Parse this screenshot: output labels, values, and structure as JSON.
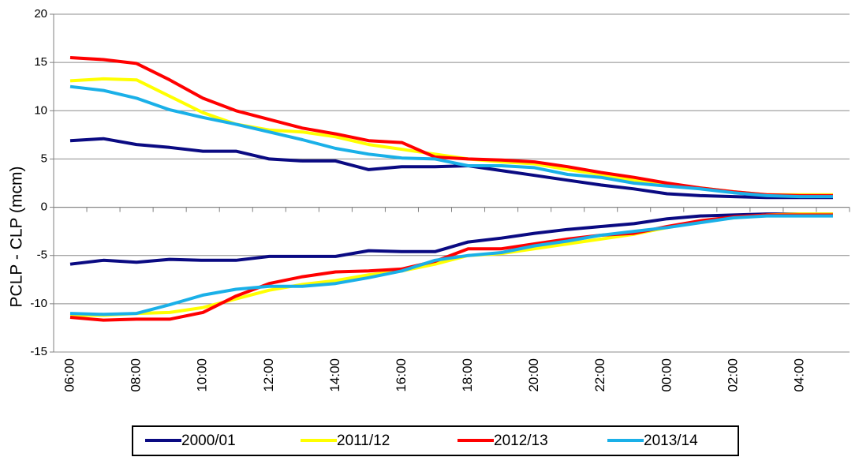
{
  "chart_data": {
    "type": "line",
    "y_label": "PCLP - CLP (mcm)",
    "categories": [
      "06:00",
      null,
      "08:00",
      null,
      "10:00",
      null,
      "12:00",
      null,
      "14:00",
      null,
      "16:00",
      null,
      "18:00",
      null,
      "20:00",
      null,
      "22:00",
      null,
      "00:00",
      null,
      "02:00",
      null,
      "04:00",
      null
    ],
    "ylim": [
      -15,
      20
    ],
    "yticks": [
      -15,
      -10,
      -5,
      0,
      5,
      10,
      15,
      20
    ],
    "grid": true,
    "series": [
      {
        "name": "2000/01",
        "color": "#0a0a82",
        "values": [
          6.9,
          7.1,
          6.5,
          6.2,
          5.8,
          5.8,
          5.0,
          4.8,
          4.8,
          3.9,
          4.2,
          4.2,
          4.3,
          3.8,
          3.3,
          2.8,
          2.3,
          1.9,
          1.4,
          1.2,
          1.1,
          1.0,
          1.0,
          1.0
        ],
        "values_lower": [
          -5.9,
          -5.5,
          -5.7,
          -5.4,
          -5.5,
          -5.5,
          -5.1,
          -5.1,
          -5.1,
          -4.5,
          -4.6,
          -4.6,
          -3.6,
          -3.2,
          -2.7,
          -2.3,
          -2.0,
          -1.7,
          -1.2,
          -0.9,
          -0.8,
          -0.7,
          -0.7,
          -0.7
        ]
      },
      {
        "name": "2011/12",
        "color": "#ffff00",
        "values": [
          13.1,
          13.3,
          13.2,
          11.5,
          9.8,
          8.6,
          8.0,
          7.8,
          7.3,
          6.5,
          6.0,
          5.5,
          5.0,
          4.7,
          4.5,
          3.9,
          3.4,
          2.8,
          2.4,
          2.0,
          1.6,
          1.3,
          1.3,
          1.3
        ],
        "values_lower": [
          -11.2,
          -11.2,
          -11.0,
          -10.9,
          -10.4,
          -9.5,
          -8.6,
          -8.0,
          -7.6,
          -7.0,
          -6.6,
          -5.9,
          -5.0,
          -4.8,
          -4.3,
          -3.8,
          -3.3,
          -2.8,
          -2.1,
          -1.5,
          -1.1,
          -0.8,
          -0.7,
          -0.7
        ]
      },
      {
        "name": "2012/13",
        "color": "#ff0000",
        "values": [
          15.5,
          15.3,
          14.9,
          13.2,
          11.3,
          10.0,
          9.1,
          8.2,
          7.6,
          6.9,
          6.7,
          5.2,
          5.0,
          4.9,
          4.7,
          4.2,
          3.6,
          3.1,
          2.5,
          2.0,
          1.6,
          1.3,
          1.2,
          1.2
        ],
        "values_lower": [
          -11.4,
          -11.7,
          -11.6,
          -11.6,
          -10.9,
          -9.2,
          -7.9,
          -7.2,
          -6.7,
          -6.6,
          -6.4,
          -5.6,
          -4.3,
          -4.3,
          -3.8,
          -3.3,
          -2.9,
          -2.7,
          -2.0,
          -1.4,
          -1.0,
          -0.8,
          -0.8,
          -0.8
        ]
      },
      {
        "name": "2013/14",
        "color": "#1ab0e8",
        "values": [
          12.5,
          12.1,
          11.3,
          10.1,
          9.3,
          8.6,
          7.8,
          7.0,
          6.1,
          5.5,
          5.1,
          5.0,
          4.3,
          4.3,
          4.1,
          3.4,
          3.1,
          2.5,
          2.2,
          1.9,
          1.5,
          1.2,
          1.1,
          1.1
        ],
        "values_lower": [
          -11.0,
          -11.1,
          -11.0,
          -10.1,
          -9.1,
          -8.5,
          -8.2,
          -8.2,
          -7.9,
          -7.3,
          -6.6,
          -5.5,
          -5.0,
          -4.7,
          -4.0,
          -3.5,
          -2.9,
          -2.5,
          -2.1,
          -1.6,
          -1.1,
          -0.9,
          -0.9,
          -0.9
        ]
      }
    ]
  }
}
